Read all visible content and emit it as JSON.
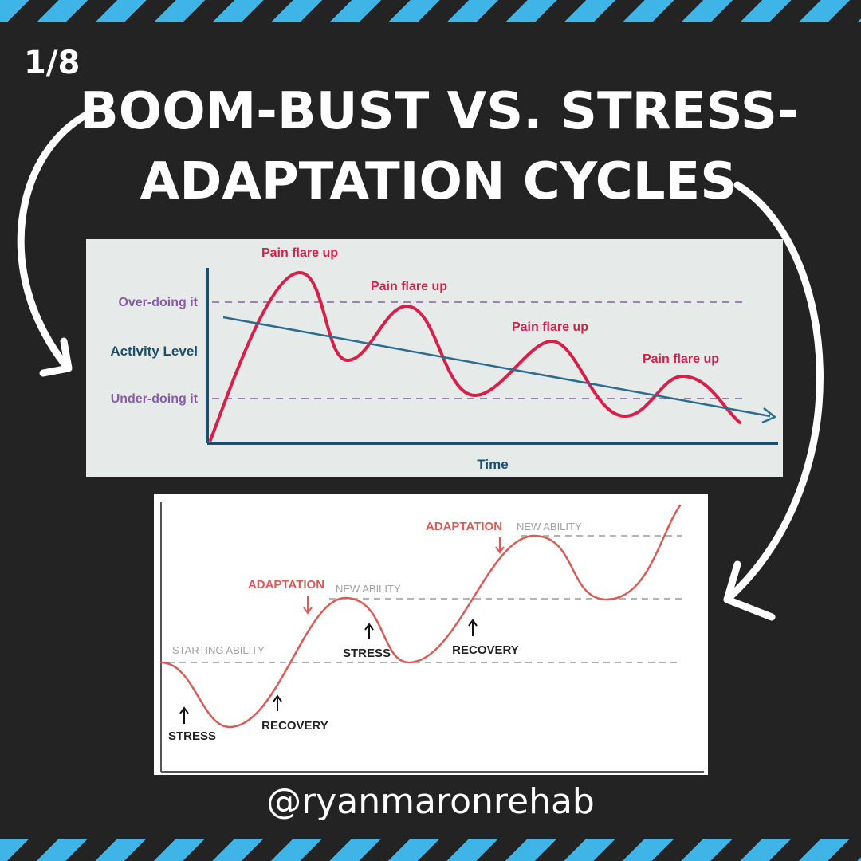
{
  "slide": {
    "number": "1/8"
  },
  "title": {
    "line1": "BOOM-BUST VS. STRESS-",
    "line2": "ADAPTATION CYCLES"
  },
  "handle": "@ryanmaronrehab",
  "colors": {
    "background": "#232323",
    "stripe": "#3fb4e6",
    "flare_red": "#d81f4a",
    "trend_blue": "#2b6d8f",
    "label_purple": "#8a5ca8",
    "adapt_red": "#d95b57"
  },
  "chart_data": [
    {
      "type": "line",
      "xlabel": "Time",
      "ylabel": "Activity Level",
      "levels": [
        {
          "name": "over",
          "label": "Over-doing it"
        },
        {
          "name": "under",
          "label": "Under-doing it"
        }
      ],
      "annotations": [
        "Pain flare up",
        "Pain flare up",
        "Pain flare up",
        "Pain flare up"
      ]
    },
    {
      "type": "line",
      "levels": [
        "STARTING ABILITY",
        "NEW ABILITY",
        "NEW ABILITY"
      ],
      "annotations": [
        {
          "text": "STRESS",
          "arrow": "up"
        },
        {
          "text": "RECOVERY",
          "arrow": "up"
        },
        {
          "text": "ADAPTATION",
          "arrow": "down"
        },
        {
          "text": "STRESS",
          "arrow": "up"
        },
        {
          "text": "RECOVERY",
          "arrow": "up"
        },
        {
          "text": "ADAPTATION",
          "arrow": "down"
        }
      ]
    }
  ]
}
